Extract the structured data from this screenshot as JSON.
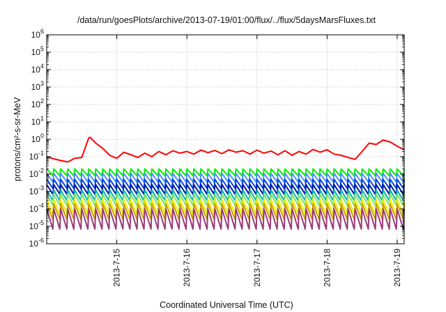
{
  "chart_data": {
    "type": "line",
    "title": "/data/run/goesPlots/archive/2013-07-19/01:00/flux/../flux/5daysMarsFluxes.txt",
    "xlabel": "Coordinated Universal Time (UTC)",
    "ylabel": "protons/cm²-s-sr-MeV",
    "yscale": "log",
    "ylim_exponent": [
      -6,
      6
    ],
    "y_tick_base": "10",
    "y_tick_exponents": [
      "-6",
      "-5",
      "-4",
      "-3",
      "-2",
      "-1",
      "0",
      "1",
      "2",
      "3",
      "4",
      "5",
      "6"
    ],
    "xlim_days": [
      14.0,
      19.1
    ],
    "x_ticks": [
      {
        "day": 15,
        "label": "2013-7-15"
      },
      {
        "day": 16,
        "label": "2013-7-16"
      },
      {
        "day": 17,
        "label": "2013-7-17"
      },
      {
        "day": 18,
        "label": "2013-7-18"
      },
      {
        "day": 19,
        "label": "2013-7-19"
      }
    ],
    "grid": true,
    "legend": "none",
    "series": [
      {
        "color": "#ff0000",
        "x": [
          14.0,
          14.1,
          14.2,
          14.3,
          14.4,
          14.5,
          14.6,
          14.62,
          14.7,
          14.8,
          14.9,
          15.0,
          15.1,
          15.2,
          15.3,
          15.4,
          15.5,
          15.6,
          15.7,
          15.8,
          15.9,
          16.0,
          16.1,
          16.2,
          16.3,
          16.4,
          16.5,
          16.6,
          16.7,
          16.8,
          16.9,
          17.0,
          17.1,
          17.2,
          17.3,
          17.4,
          17.5,
          17.6,
          17.7,
          17.8,
          17.9,
          18.0,
          18.1,
          18.2,
          18.3,
          18.4,
          18.5,
          18.6,
          18.7,
          18.8,
          18.9,
          19.0,
          19.1
        ],
        "y": [
          0.1,
          0.075,
          0.06,
          0.05,
          0.08,
          0.09,
          1.2,
          1.3,
          0.6,
          0.3,
          0.12,
          0.08,
          0.18,
          0.13,
          0.09,
          0.16,
          0.1,
          0.2,
          0.13,
          0.22,
          0.16,
          0.2,
          0.14,
          0.24,
          0.17,
          0.23,
          0.15,
          0.25,
          0.18,
          0.22,
          0.14,
          0.24,
          0.16,
          0.21,
          0.13,
          0.22,
          0.12,
          0.2,
          0.14,
          0.26,
          0.18,
          0.25,
          0.14,
          0.12,
          0.09,
          0.07,
          0.2,
          0.6,
          0.5,
          0.9,
          0.7,
          0.4,
          0.25
        ]
      },
      {
        "color": "#00ee00",
        "sawtooth": {
          "period": 0.1,
          "high": 0.02,
          "low": 0.008
        }
      },
      {
        "color": "#4d90ff",
        "sawtooth": {
          "period": 0.1,
          "high": 0.011,
          "low": 0.0035
        }
      },
      {
        "color": "#0040e0",
        "sawtooth": {
          "period": 0.1,
          "high": 0.005,
          "low": 0.0015
        }
      },
      {
        "color": "#001aa0",
        "sawtooth": {
          "period": 0.1,
          "high": 0.0025,
          "low": 0.0007
        }
      },
      {
        "color": "#00b4b4",
        "sawtooth": {
          "period": 0.1,
          "high": 0.0012,
          "low": 0.0003
        }
      },
      {
        "color": "#80e060",
        "sawtooth": {
          "period": 0.1,
          "high": 0.0007,
          "low": 0.00016
        }
      },
      {
        "color": "#f0f000",
        "sawtooth": {
          "period": 0.1,
          "high": 0.00035,
          "low": 5e-05
        }
      },
      {
        "color": "#c8a000",
        "sawtooth": {
          "period": 0.1,
          "high": 0.0002,
          "low": 2.5e-05
        }
      },
      {
        "color": "#9a3a7a",
        "sawtooth": {
          "period": 0.1,
          "high": 0.0001,
          "low": 7e-06
        }
      }
    ]
  }
}
